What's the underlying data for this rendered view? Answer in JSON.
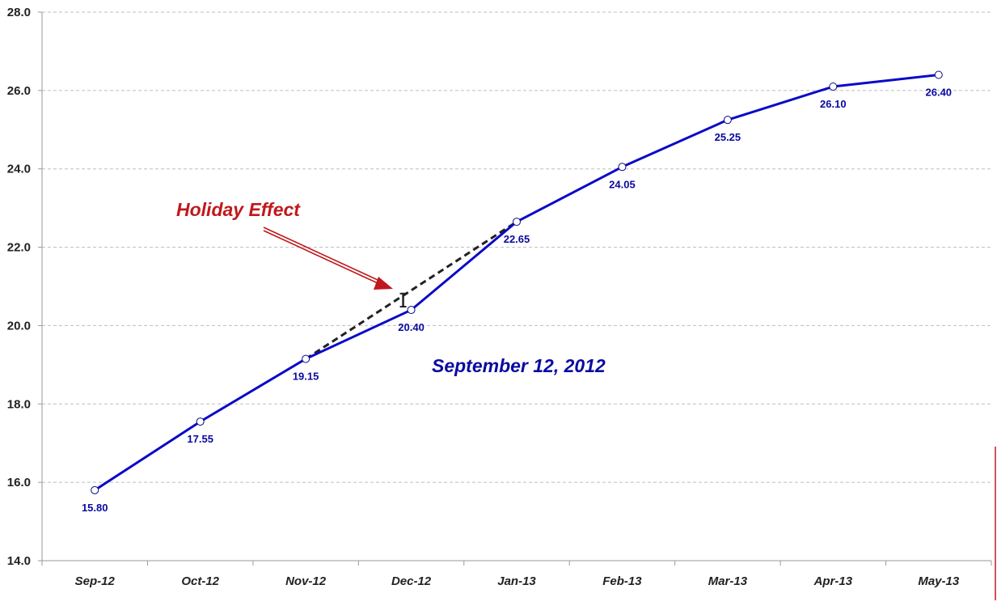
{
  "chart_data": {
    "type": "line",
    "categories": [
      "Sep-12",
      "Oct-12",
      "Nov-12",
      "Dec-12",
      "Jan-13",
      "Feb-13",
      "Mar-13",
      "Apr-13",
      "May-13"
    ],
    "series": [
      {
        "values": [
          15.8,
          17.55,
          19.15,
          20.4,
          22.65,
          24.05,
          25.25,
          26.1,
          26.4
        ],
        "color": "#0a0ac8",
        "marker": "open-circle"
      }
    ],
    "data_labels": [
      "15.80",
      "17.55",
      "19.15",
      "20.40",
      "22.65",
      "24.05",
      "25.25",
      "26.10",
      "26.40"
    ],
    "yticks": [
      "14.0",
      "16.0",
      "18.0",
      "20.0",
      "22.0",
      "24.0",
      "26.0",
      "28.0"
    ],
    "ylim": [
      14,
      28
    ],
    "grid": "horizontal dashed",
    "annotations": {
      "holiday_label": "Holiday Effect",
      "date_label": "September 12, 2012",
      "trend_line": {
        "from_category": "Nov-12",
        "to_category": "Jan-13",
        "from_value": 19.15,
        "to_value": 22.65,
        "style": "dashed",
        "color": "#222222"
      },
      "holiday_color": "#c0181c",
      "date_color": "#0a0aa0"
    }
  }
}
